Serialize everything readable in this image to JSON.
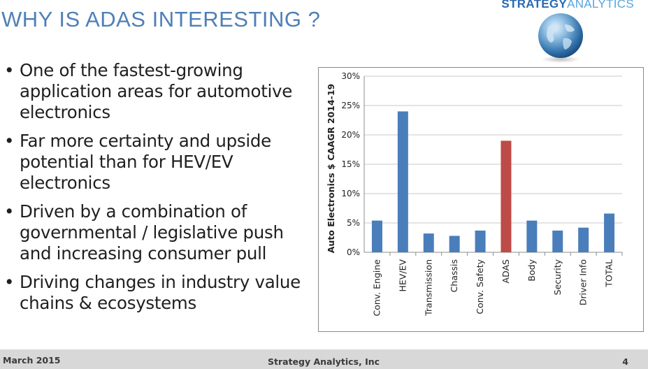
{
  "header": {
    "title": "WHY IS ADAS INTERESTING ?",
    "logo_bold": "STRATEGY",
    "logo_light": "ANALYTICS"
  },
  "bullets": [
    "One of the fastest-growing application areas for automotive electronics",
    "Far more certainty and upside potential than for HEV/EV electronics",
    "Driven by a combination of governmental / legislative push and increasing consumer pull",
    "Driving changes in industry value chains & ecosystems"
  ],
  "bullet_symbol": "•",
  "footer": {
    "date": "March 2015",
    "company": "Strategy Analytics, Inc",
    "page": "4"
  },
  "colors": {
    "title": "#4f7fb6",
    "bar_default": "#4a7ebb",
    "bar_highlight": "#be4b48",
    "footer_bg": "#d8d8d8"
  },
  "chart_data": {
    "type": "bar",
    "categories": [
      "Conv. Engine",
      "HEV/EV",
      "Transmission",
      "Chassis",
      "Conv. Safety",
      "ADAS",
      "Body",
      "Security",
      "Driver Info",
      "TOTAL"
    ],
    "values": [
      5.4,
      24.0,
      3.2,
      2.8,
      3.7,
      19.0,
      5.4,
      3.7,
      4.2,
      6.6
    ],
    "highlight": "ADAS",
    "title": "",
    "xlabel": "",
    "ylabel": "Auto Electronics $ CAAGR 2014-19",
    "ylim": [
      0,
      30
    ],
    "yticks": [
      "0%",
      "5%",
      "10%",
      "15%",
      "20%",
      "25%",
      "30%"
    ],
    "grid": true,
    "legend": "none"
  }
}
